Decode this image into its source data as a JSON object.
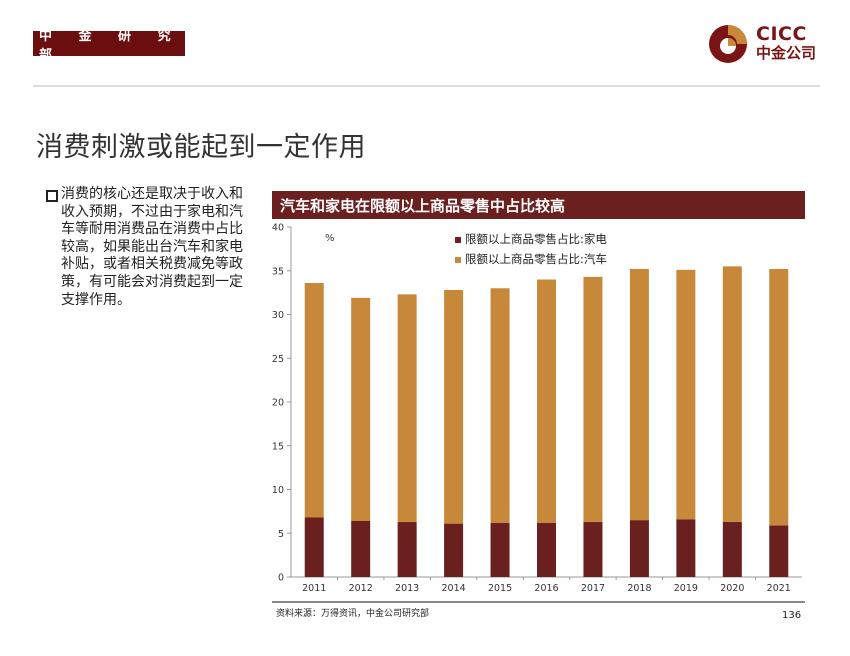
{
  "header": {
    "dept_label": "中 金 研 究 部",
    "logo_en": "CICC",
    "logo_cn": "中金公司",
    "brand_colors": {
      "primary": "#7a1515",
      "secondary": "#c8883a"
    }
  },
  "page_title": "消费刺激或能起到一定作用",
  "bullet": {
    "icon": "hollow-square-bullet-icon",
    "text": "消费的核心还是取决于收入和收入预期，不过由于家电和汽车等耐用消费品在消费中占比较高，如果能出台汽车和家电补贴，或者相关税费减免等政策，有可能会对消费起到一定支撑作用。"
  },
  "chart_header": "汽车和家电在限额以上商品零售中占比较高",
  "footer": {
    "source": "资料来源：万得资讯，中金公司研究部",
    "page_number": "136"
  },
  "chart_data": {
    "type": "bar",
    "stacked": true,
    "title": "汽车和家电在限额以上商品零售中占比较高",
    "xlabel": "",
    "ylabel": "%",
    "ylim": [
      0,
      40
    ],
    "yticks": [
      0,
      5,
      10,
      15,
      20,
      25,
      30,
      35,
      40
    ],
    "grid": false,
    "legend_position": "top-center",
    "categories": [
      "2011",
      "2012",
      "2013",
      "2014",
      "2015",
      "2016",
      "2017",
      "2018",
      "2019",
      "2020",
      "2021"
    ],
    "series": [
      {
        "name": "限额以上商品零售占比:家电",
        "color": "#6b2020",
        "values": [
          6.8,
          6.4,
          6.3,
          6.1,
          6.2,
          6.2,
          6.3,
          6.5,
          6.6,
          6.3,
          5.9
        ]
      },
      {
        "name": "限额以上商品零售占比:汽车",
        "color": "#c8883a",
        "values": [
          26.8,
          25.5,
          26.0,
          26.7,
          26.8,
          27.8,
          28.0,
          28.7,
          28.5,
          29.2,
          29.3
        ]
      }
    ]
  }
}
